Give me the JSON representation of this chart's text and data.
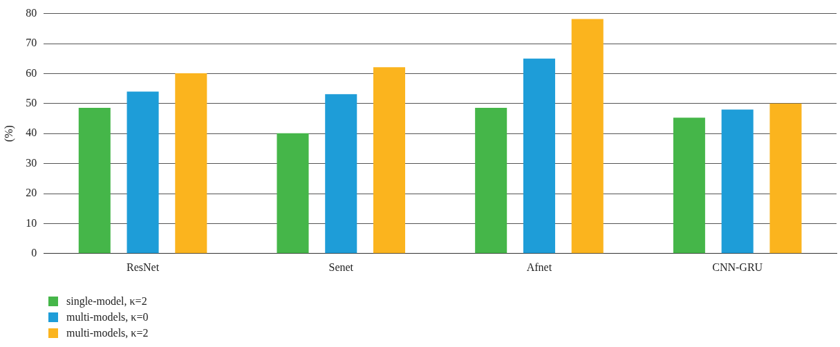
{
  "chart_data": {
    "type": "bar",
    "ylabel": "(%)",
    "categories": [
      "ResNet",
      "Senet",
      "Afnet",
      "CNN-GRU"
    ],
    "series": [
      {
        "name": "single-model, κ=2",
        "color": "#45b649",
        "values": [
          48.6,
          40.1,
          48.6,
          45.3
        ]
      },
      {
        "name": "multi-models, κ=0",
        "color": "#1e9dd8",
        "values": [
          54.0,
          53.1,
          65.0,
          48.0
        ]
      },
      {
        "name": "multi-models, κ=2",
        "color": "#fbb41e",
        "values": [
          60.1,
          62.1,
          78.2,
          50.0
        ]
      }
    ],
    "ylim": [
      0,
      80
    ],
    "yticks": [
      0,
      10,
      20,
      30,
      40,
      50,
      60,
      70,
      80
    ],
    "grid": "y",
    "legend": "bottom left"
  }
}
